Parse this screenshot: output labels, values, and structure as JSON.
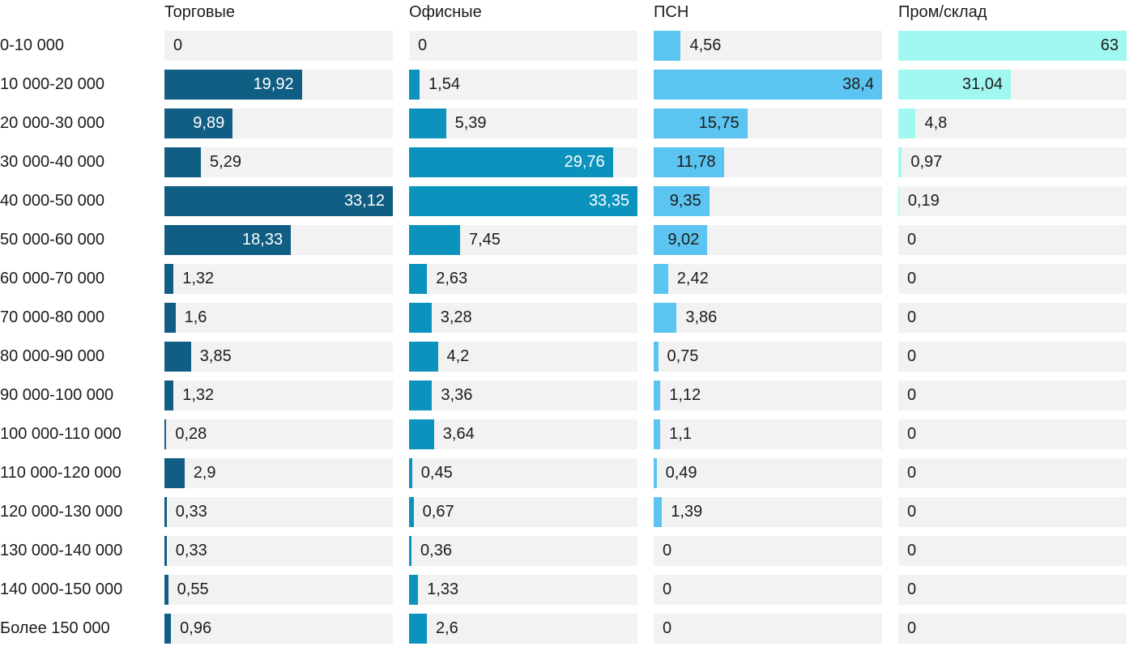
{
  "chart_data": {
    "type": "bar",
    "orientation": "horizontal",
    "scale": "independent_per_series_max",
    "grid": false,
    "legend_position": "column-headers-top",
    "cell_background": "#F2F2F2",
    "page_background": "#FFFFFF",
    "text_color": "#1C1C1C",
    "categories": [
      "0-10 000",
      "10 000-20 000",
      "20 000-30 000",
      "30 000-40 000",
      "40 000-50 000",
      "50 000-60 000",
      "60 000-70 000",
      "70 000-80 000",
      "80 000-90 000",
      "90 000-100 000",
      "100 000-110 000",
      "110 000-120 000",
      "120 000-130 000",
      "130 000-140 000",
      "140 000-150 000",
      "Более 150 000"
    ],
    "series": [
      {
        "name": "Торговые",
        "color": "#115E84",
        "inside_label_color": "#FFFFFF",
        "labels": [
          "0",
          "19,92",
          "9,89",
          "5,29",
          "33,12",
          "18,33",
          "1,32",
          "1,6",
          "3,85",
          "1,32",
          "0,28",
          "2,9",
          "0,33",
          "0,33",
          "0,55",
          "0,96"
        ],
        "values": [
          0,
          19.92,
          9.89,
          5.29,
          33.12,
          18.33,
          1.32,
          1.6,
          3.85,
          1.32,
          0.28,
          2.9,
          0.33,
          0.33,
          0.55,
          0.96
        ]
      },
      {
        "name": "Офисные",
        "color": "#0C93BD",
        "inside_label_color": "#FFFFFF",
        "labels": [
          "0",
          "1,54",
          "5,39",
          "29,76",
          "33,35",
          "7,45",
          "2,63",
          "3,28",
          "4,2",
          "3,36",
          "3,64",
          "0,45",
          "0,67",
          "0,36",
          "1,33",
          "2,6"
        ],
        "values": [
          0,
          1.54,
          5.39,
          29.76,
          33.35,
          7.45,
          2.63,
          3.28,
          4.2,
          3.36,
          3.64,
          0.45,
          0.67,
          0.36,
          1.33,
          2.6
        ]
      },
      {
        "name": "ПСН",
        "color": "#5BC4F0",
        "inside_label_color": "#1C1C1C",
        "labels": [
          "4,56",
          "38,4",
          "15,75",
          "11,78",
          "9,35",
          "9,02",
          "2,42",
          "3,86",
          "0,75",
          "1,12",
          "1,1",
          "0,49",
          "1,39",
          "0",
          "0",
          "0"
        ],
        "values": [
          4.56,
          38.4,
          15.75,
          11.78,
          9.35,
          9.02,
          2.42,
          3.86,
          0.75,
          1.12,
          1.1,
          0.49,
          1.39,
          0,
          0,
          0
        ]
      },
      {
        "name": "Пром/склад",
        "color": "#A1F8F1",
        "inside_label_color": "#1C1C1C",
        "labels": [
          "63",
          "31,04",
          "4,8",
          "0,97",
          "0,19",
          "0",
          "0",
          "0",
          "0",
          "0",
          "0",
          "0",
          "0",
          "0",
          "0",
          "0"
        ],
        "values": [
          63,
          31.04,
          4.8,
          0.97,
          0.19,
          0,
          0,
          0,
          0,
          0,
          0,
          0,
          0,
          0,
          0,
          0
        ]
      }
    ]
  }
}
